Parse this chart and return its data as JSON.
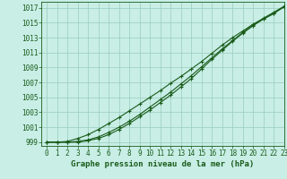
{
  "xlabel": "Graphe pression niveau de la mer (hPa)",
  "xlim": [
    -0.5,
    23
  ],
  "ylim": [
    998.5,
    1017.8
  ],
  "yticks": [
    999,
    1001,
    1003,
    1005,
    1007,
    1009,
    1011,
    1013,
    1015,
    1017
  ],
  "xticks": [
    0,
    1,
    2,
    3,
    4,
    5,
    6,
    7,
    8,
    9,
    10,
    11,
    12,
    13,
    14,
    15,
    16,
    17,
    18,
    19,
    20,
    21,
    22,
    23
  ],
  "bg_color": "#c8eee6",
  "grid_color": "#99ccbb",
  "line_color": "#1a5c1a",
  "line1": [
    999.0,
    999.0,
    999.0,
    999.1,
    999.3,
    999.7,
    1000.3,
    1001.0,
    1001.8,
    1002.7,
    1003.7,
    1004.7,
    1005.7,
    1006.8,
    1007.9,
    1009.1,
    1010.3,
    1011.5,
    1012.6,
    1013.7,
    1014.7,
    1015.5,
    1016.2,
    1017.2
  ],
  "line2": [
    999.0,
    999.0,
    999.1,
    999.5,
    1000.0,
    1000.7,
    1001.5,
    1002.3,
    1003.2,
    1004.1,
    1005.0,
    1005.9,
    1006.9,
    1007.8,
    1008.8,
    1009.8,
    1010.9,
    1012.0,
    1013.0,
    1013.9,
    1014.8,
    1015.6,
    1016.4,
    1017.2
  ],
  "line3": [
    999.0,
    999.0,
    999.0,
    999.0,
    999.2,
    999.5,
    1000.0,
    1000.7,
    1001.5,
    1002.4,
    1003.3,
    1004.3,
    1005.3,
    1006.4,
    1007.5,
    1008.8,
    1010.1,
    1011.3,
    1012.5,
    1013.6,
    1014.6,
    1015.5,
    1016.3,
    1017.1
  ],
  "tick_fontsize": 5.5,
  "label_fontsize": 6.5,
  "marker": "+",
  "markersize": 3.5,
  "linewidth": 0.8
}
